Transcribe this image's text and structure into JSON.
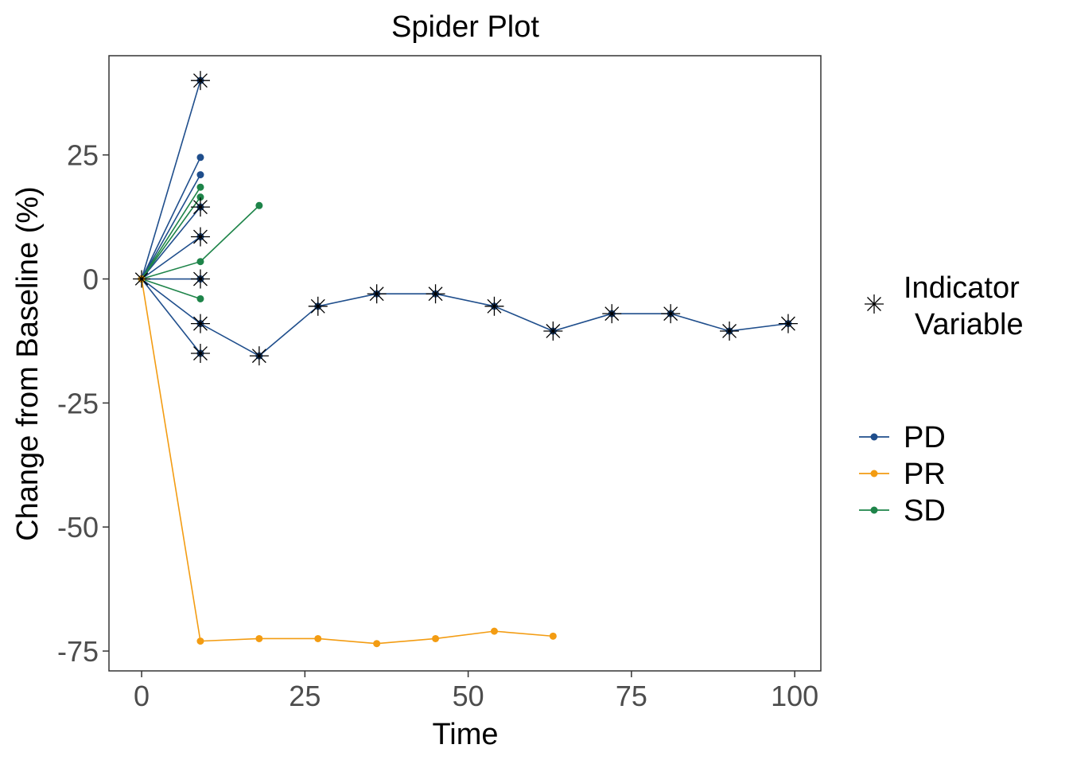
{
  "chart_data": {
    "type": "line",
    "title": "Spider Plot",
    "xlabel": "Time",
    "ylabel": "Change from Baseline (%)",
    "xlim": [
      -5,
      104
    ],
    "ylim": [
      -79,
      45
    ],
    "x_ticks": [
      0,
      25,
      50,
      75,
      100
    ],
    "y_ticks": [
      -75,
      -50,
      -25,
      0,
      25
    ],
    "x_tick_labels": [
      "0",
      "25",
      "50",
      "75",
      "100"
    ],
    "y_tick_labels": [
      "-75",
      "-50",
      "-25",
      "0",
      "25"
    ],
    "grid": false,
    "legend": {
      "position": "right",
      "indicator_title": [
        "Indicator",
        "Variable"
      ],
      "groups": [
        "PD",
        "PR",
        "SD"
      ]
    },
    "colors": {
      "PD": "#1f4e8c",
      "PR": "#f39c12",
      "SD": "#1e8449",
      "indicator": "#000000"
    },
    "series": [
      {
        "group": "PD",
        "points": [
          [
            0,
            0
          ],
          [
            9,
            40
          ]
        ],
        "indicator": [
          [
            9,
            40
          ]
        ]
      },
      {
        "group": "PD",
        "points": [
          [
            0,
            0
          ],
          [
            9,
            24.5
          ]
        ],
        "indicator": []
      },
      {
        "group": "PD",
        "points": [
          [
            0,
            0
          ],
          [
            9,
            21
          ]
        ],
        "indicator": []
      },
      {
        "group": "PD",
        "points": [
          [
            0,
            0
          ],
          [
            9,
            14.5
          ]
        ],
        "indicator": [
          [
            9,
            14.5
          ]
        ]
      },
      {
        "group": "PD",
        "points": [
          [
            0,
            0
          ],
          [
            9,
            8.5
          ]
        ],
        "indicator": [
          [
            9,
            8.5
          ]
        ]
      },
      {
        "group": "PD",
        "points": [
          [
            0,
            0
          ],
          [
            9,
            0
          ]
        ],
        "indicator": [
          [
            9,
            0
          ]
        ]
      },
      {
        "group": "PD",
        "points": [
          [
            0,
            0
          ],
          [
            9,
            -15
          ]
        ],
        "indicator": [
          [
            9,
            -15
          ]
        ]
      },
      {
        "group": "PD",
        "points": [
          [
            0,
            0
          ],
          [
            9,
            -9
          ],
          [
            18,
            -15.5
          ],
          [
            27,
            -5.5
          ],
          [
            36,
            -3
          ],
          [
            45,
            -3
          ],
          [
            54,
            -5.5
          ],
          [
            63,
            -10.5
          ],
          [
            72,
            -7
          ],
          [
            81,
            -7
          ],
          [
            90,
            -10.5
          ],
          [
            99,
            -9
          ]
        ],
        "indicator": [
          [
            9,
            -9
          ],
          [
            18,
            -15.5
          ],
          [
            27,
            -5.5
          ],
          [
            36,
            -3
          ],
          [
            45,
            -3
          ],
          [
            54,
            -5.5
          ],
          [
            63,
            -10.5
          ],
          [
            72,
            -7
          ],
          [
            81,
            -7
          ],
          [
            90,
            -10.5
          ],
          [
            99,
            -9
          ]
        ]
      },
      {
        "group": "SD",
        "points": [
          [
            0,
            0
          ],
          [
            9,
            18.5
          ]
        ],
        "indicator": []
      },
      {
        "group": "SD",
        "points": [
          [
            0,
            0
          ],
          [
            9,
            16.5
          ]
        ],
        "indicator": []
      },
      {
        "group": "SD",
        "points": [
          [
            0,
            0
          ],
          [
            9,
            3.5
          ],
          [
            18,
            14.8
          ]
        ],
        "indicator": []
      },
      {
        "group": "SD",
        "points": [
          [
            0,
            0
          ],
          [
            9,
            -4
          ]
        ],
        "indicator": []
      },
      {
        "group": "PR",
        "points": [
          [
            0,
            0
          ],
          [
            9,
            -73
          ],
          [
            18,
            -72.5
          ],
          [
            27,
            -72.5
          ],
          [
            36,
            -73.5
          ],
          [
            45,
            -72.5
          ],
          [
            54,
            -71
          ],
          [
            63,
            -72
          ]
        ],
        "indicator": []
      }
    ],
    "baseline_indicator": [
      [
        0,
        0
      ]
    ]
  }
}
